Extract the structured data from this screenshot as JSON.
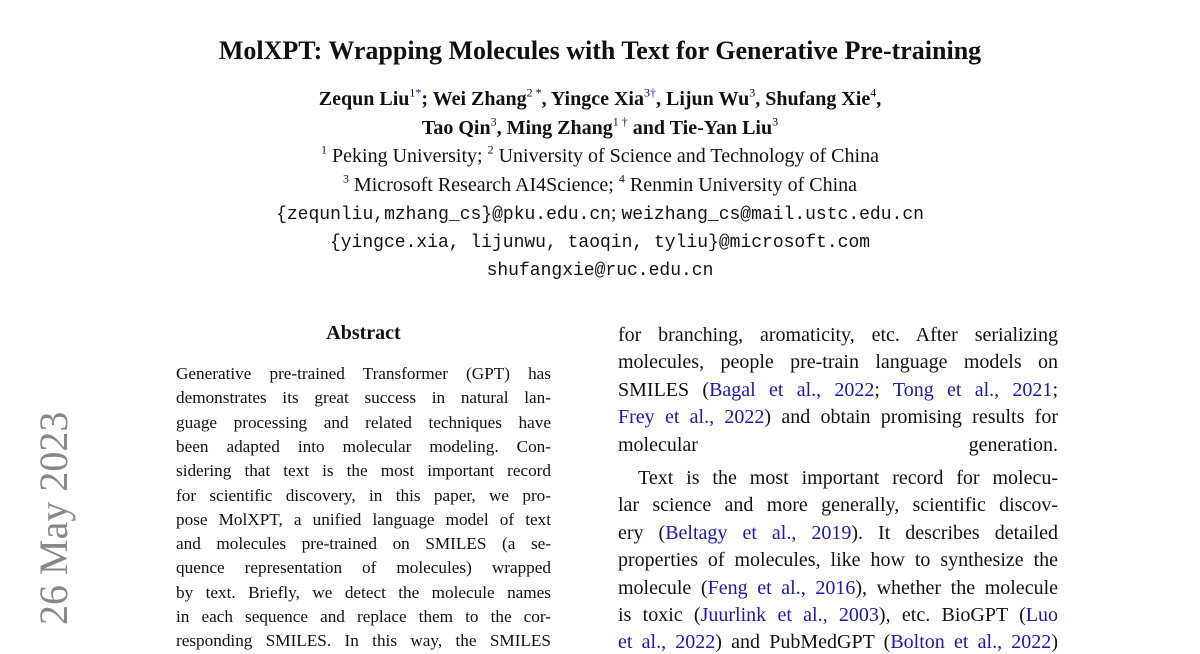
{
  "title": "MolXPT: Wrapping Molecules with Text for Generative Pre-training",
  "authors_line1": [
    {
      "t": "Zequn Liu"
    },
    {
      "t": "1",
      "sup": true
    },
    {
      "t": "*",
      "sup": true,
      "link": true
    },
    {
      "t": "; Wei Zhang"
    },
    {
      "t": "2 *",
      "sup": true
    },
    {
      "t": ", Yingce Xia"
    },
    {
      "t": "3",
      "sup": true
    },
    {
      "t": "†",
      "sup": true,
      "link": true
    },
    {
      "t": ", Lijun Wu"
    },
    {
      "t": "3",
      "sup": true
    },
    {
      "t": ", Shufang Xie"
    },
    {
      "t": "4",
      "sup": true
    },
    {
      "t": ","
    }
  ],
  "authors_line2": [
    {
      "t": "Tao Qin"
    },
    {
      "t": "3",
      "sup": true
    },
    {
      "t": ", Ming Zhang"
    },
    {
      "t": "1 †",
      "sup": true
    },
    {
      "t": " and Tie-Yan Liu"
    },
    {
      "t": "3",
      "sup": true
    }
  ],
  "affil_line1": [
    {
      "t": "1",
      "sup": true
    },
    {
      "t": " Peking University; "
    },
    {
      "t": "2",
      "sup": true
    },
    {
      "t": " University of Science and Technology of China"
    }
  ],
  "affil_line2": [
    {
      "t": "3",
      "sup": true
    },
    {
      "t": " Microsoft Research AI4Science; "
    },
    {
      "t": "4",
      "sup": true
    },
    {
      "t": " Renmin University of China"
    }
  ],
  "email_line1": [
    {
      "t": "{zequnliu,mzhang_cs}@pku.edu.cn",
      "mono": true
    },
    {
      "t": "; "
    },
    {
      "t": "weizhang_cs@mail.ustc.edu.cn",
      "mono": true
    }
  ],
  "email_line2": [
    {
      "t": "{yingce.xia, lijunwu, taoqin, tyliu}@microsoft.com",
      "mono": true
    }
  ],
  "email_line3": [
    {
      "t": "shufangxie@ruc.edu.cn",
      "mono": true
    }
  ],
  "abstract_heading": "Abstract",
  "arxiv_stamp": "26 May 2023",
  "link_color": "#1a1aa8",
  "left_column": [
    [
      {
        "t": "Generative pre-trained Transformer (GPT) has"
      }
    ],
    [
      {
        "t": "demonstrates its great success in natural lan-"
      }
    ],
    [
      {
        "t": "guage processing and related techniques have"
      }
    ],
    [
      {
        "t": "been adapted into molecular modeling. Con-"
      }
    ],
    [
      {
        "t": "sidering that text is the most important record"
      }
    ],
    [
      {
        "t": "for scientific discovery, in this paper, we pro-"
      }
    ],
    [
      {
        "t": "pose MolXPT, a unified language model of text"
      }
    ],
    [
      {
        "t": "and molecules pre-trained on SMILES (a se-"
      }
    ],
    [
      {
        "t": "quence representation of molecules) wrapped"
      }
    ],
    [
      {
        "t": "by text. Briefly, we detect the molecule names"
      }
    ],
    [
      {
        "t": "in each sequence and replace them to the cor-"
      }
    ],
    [
      {
        "t": "responding SMILES. In this way, the SMILES"
      }
    ]
  ],
  "right_column": [
    [
      {
        "t": "for branching, aromaticity, etc.  After serializing"
      }
    ],
    [
      {
        "t": "molecules, people pre-train language models on"
      }
    ],
    [
      {
        "t": "SMILES ("
      },
      {
        "t": "Bagal et al., 2022",
        "link": true
      },
      {
        "t": "; "
      },
      {
        "t": "Tong et al., 2021",
        "link": true
      },
      {
        "t": ";"
      }
    ],
    [
      {
        "t": "Frey et al., 2022",
        "link": true
      },
      {
        "t": ") and obtain promising results for"
      }
    ],
    [
      {
        "t": "molecular generation."
      }
    ],
    [
      {
        "t": " Text is the most important record for molecu-"
      }
    ],
    [
      {
        "t": "lar science and more generally, scientific discov-"
      }
    ],
    [
      {
        "t": "ery ("
      },
      {
        "t": "Beltagy et al., 2019",
        "link": true
      },
      {
        "t": ").  It describes detailed"
      }
    ],
    [
      {
        "t": "properties of molecules, like how to synthesize the"
      }
    ],
    [
      {
        "t": "molecule ("
      },
      {
        "t": "Feng et al., 2016",
        "link": true
      },
      {
        "t": "), whether the molecule"
      }
    ],
    [
      {
        "t": "is toxic ("
      },
      {
        "t": "Juurlink et al., 2003",
        "link": true
      },
      {
        "t": "), etc. BioGPT ("
      },
      {
        "t": "Luo",
        "link": true
      }
    ],
    [
      {
        "t": "et al., 2022",
        "link": true
      },
      {
        "t": ") and PubMedGPT ("
      },
      {
        "t": "Bolton et al., 2022",
        "link": true
      },
      {
        "t": ")"
      }
    ]
  ]
}
